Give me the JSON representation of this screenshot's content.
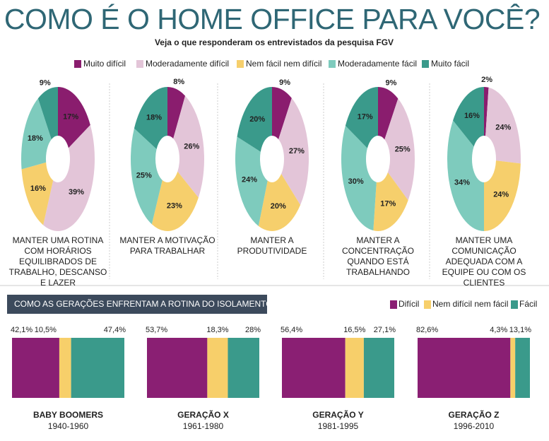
{
  "title": "COMO É O HOME OFFICE PARA VOCÊ?",
  "subtitle": "Veja o que responderam os entrevistados da pesquisa FGV",
  "chart_data": [
    {
      "type": "donut",
      "categories": [
        "Muito difícil",
        "Moderadamente difícil",
        "Nem fácil nem difícil",
        "Moderadamente fácil",
        "Muito fácil"
      ],
      "colors": [
        "#8a1d6e",
        "#e3c5d8",
        "#f6cf6c",
        "#7ecbbd",
        "#3a9a8b"
      ],
      "panels": [
        {
          "title": "MANTER UMA ROTINA COM HORÁRIOS EQUILIBRADOS DE TRABALHO, DESCANSO E LAZER",
          "values": [
            17,
            39,
            16,
            18,
            9
          ],
          "value_labels": [
            "17%",
            "39%",
            "16%",
            "18%",
            "9%"
          ]
        },
        {
          "title": "MANTER A MOTIVAÇÃO PARA TRABALHAR",
          "values": [
            8,
            26,
            23,
            25,
            18
          ],
          "value_labels": [
            "8%",
            "26%",
            "23%",
            "25%",
            "18%"
          ]
        },
        {
          "title": "MANTER A PRODUTIVIDADE",
          "values": [
            9,
            27,
            20,
            24,
            20
          ],
          "value_labels": [
            "9%",
            "27%",
            "20%",
            "24%",
            "20%"
          ]
        },
        {
          "title": "MANTER A CONCENTRAÇÃO QUANDO ESTÁ TRABALHANDO",
          "values": [
            9,
            25,
            17,
            30,
            17
          ],
          "value_labels": [
            "9%",
            "25%",
            "17%",
            "30%",
            "17%"
          ]
        },
        {
          "title": "MANTER UMA COMUNICAÇÃO ADEQUADA COM A EQUIPE OU COM OS CLIENTES",
          "values": [
            2,
            24,
            24,
            34,
            16
          ],
          "value_labels": [
            "2%",
            "24%",
            "24%",
            "34%",
            "16%"
          ]
        }
      ]
    },
    {
      "type": "stacked_bar",
      "title": "COMO AS GERAÇÕES ENFRENTAM A ROTINA DO ISOLAMENTO SOCIAL",
      "categories": [
        "BABY BOOMERS",
        "GERAÇÃO X",
        "GERAÇÃO Y",
        "GERAÇÃO Z"
      ],
      "subcategories": [
        "1940-1960",
        "1961-1980",
        "1981-1995",
        "1996-2010"
      ],
      "xlim": [
        0,
        100
      ],
      "series": [
        {
          "name": "Difícil",
          "color": "#8a1f73",
          "values": [
            42.1,
            53.7,
            56.4,
            82.6
          ],
          "value_labels": [
            "42,1%",
            "53,7%",
            "56,4%",
            "82,6%"
          ]
        },
        {
          "name": "Nem difícil nem fácil",
          "color": "#f7cf6a",
          "values": [
            10.5,
            18.3,
            16.5,
            4.3
          ],
          "value_labels": [
            "10,5%",
            "18,3%",
            "16,5%",
            "4,3%"
          ]
        },
        {
          "name": "Fácil",
          "color": "#3a9a8b",
          "values": [
            47.4,
            28,
            27.1,
            13.1
          ],
          "value_labels": [
            "47,4%",
            "28%",
            "27,1%",
            "13,1%"
          ]
        }
      ]
    }
  ]
}
